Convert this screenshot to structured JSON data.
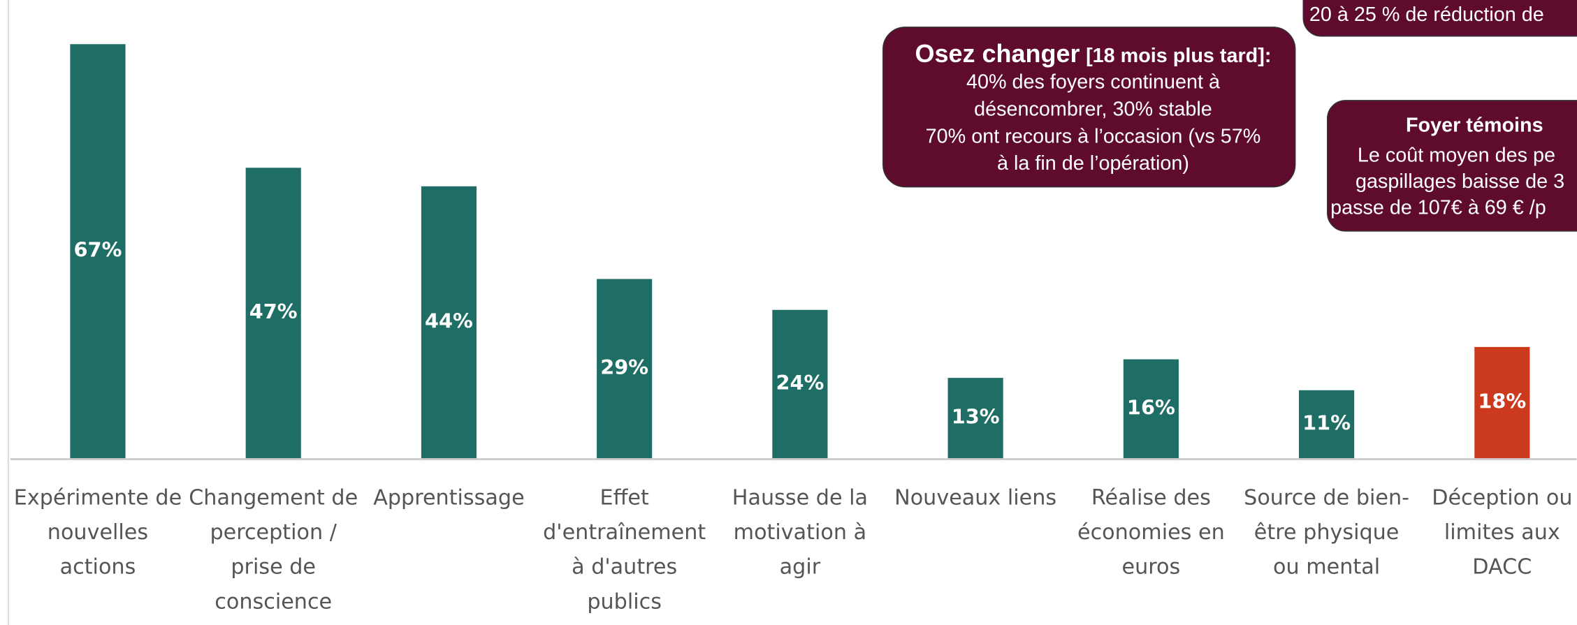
{
  "chart_data": {
    "type": "bar",
    "categories": [
      [
        "Expérimente de",
        "nouvelles",
        "actions"
      ],
      [
        "Changement de",
        "perception /",
        "prise de",
        "conscience"
      ],
      [
        "Apprentissage"
      ],
      [
        "Effet",
        "d'entraînement",
        "à d'autres",
        "publics"
      ],
      [
        "Hausse de la",
        "motivation à",
        "agir"
      ],
      [
        "Nouveaux liens"
      ],
      [
        "Réalise des",
        "économies en",
        "euros"
      ],
      [
        "Source de bien-",
        "être physique",
        "ou mental"
      ],
      [
        "Déception ou",
        "limites aux",
        "DACC"
      ]
    ],
    "values": [
      67,
      47,
      44,
      29,
      24,
      13,
      16,
      11,
      18
    ],
    "value_labels": [
      "67%",
      "47%",
      "44%",
      "29%",
      "24%",
      "13%",
      "16%",
      "11%",
      "18%"
    ],
    "colors": [
      "#1e6e66",
      "#1e6e66",
      "#1e6e66",
      "#1e6e66",
      "#1e6e66",
      "#1e6e66",
      "#1e6e66",
      "#1e6e66",
      "#cc3a1e"
    ],
    "annotations": [
      {
        "lines": [
          "20 à 25 % de réduction de"
        ]
      },
      {
        "title": "Osez changer",
        "title_note": "[18 mois plus tard]:",
        "lines": [
          "40% des foyers continuent à",
          "désencombrer, 30% stable",
          "70% ont recours à l’occasion (vs 57%",
          "à la fin de l’opération)"
        ]
      },
      {
        "title": "Foyer témoins",
        "lines": [
          "Le coût moyen des pe",
          "gaspillages baisse de 3",
          "passe de 107€ à 69 € /p"
        ]
      }
    ]
  }
}
